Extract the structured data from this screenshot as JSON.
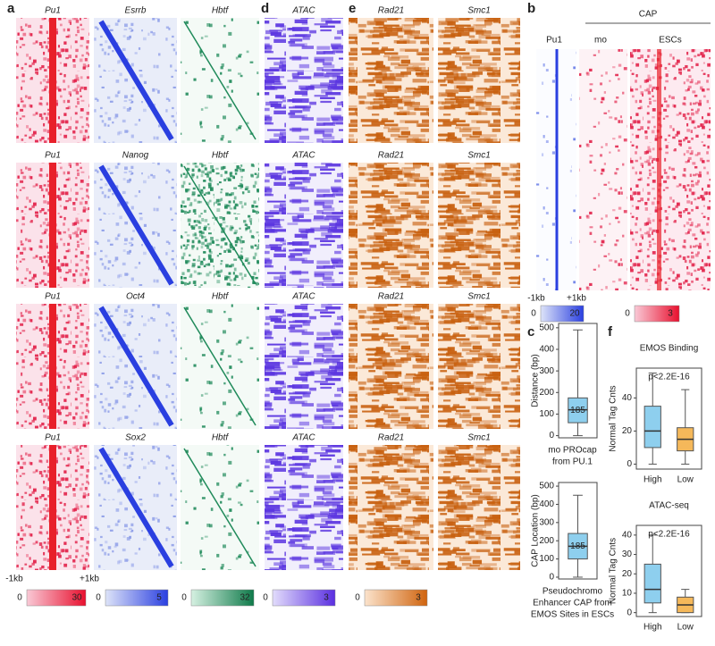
{
  "figure": {
    "panel_labels": [
      "a",
      "b",
      "c",
      "d",
      "e",
      "f"
    ],
    "a_rows": [
      [
        "Pu1",
        "Esrrb",
        "Hbtf"
      ],
      [
        "Pu1",
        "Nanog",
        "Hbtf"
      ],
      [
        "Pu1",
        "Oct4",
        "Hbtf"
      ],
      [
        "Pu1",
        "Sox2",
        "Hbtf"
      ]
    ],
    "d_titles": [
      "ATAC",
      "ATAC",
      "ATAC",
      "ATAC"
    ],
    "e_titles": [
      [
        "Rad21",
        "Smc1"
      ],
      [
        "Rad21",
        "Smc1"
      ],
      [
        "Rad21",
        "Smc1"
      ],
      [
        "Rad21",
        "Smc1"
      ]
    ],
    "a_axis": [
      "-1kb",
      "+1kb"
    ],
    "colorbars": [
      {
        "min": 0,
        "max": 30,
        "colors": [
          "#f9c9d6",
          "#e8102e"
        ]
      },
      {
        "min": 0,
        "max": 5,
        "colors": [
          "#dde3f8",
          "#2a3fe0"
        ]
      },
      {
        "min": 0,
        "max": 32,
        "colors": [
          "#d6f1e2",
          "#0f7a4a"
        ]
      },
      {
        "min": 0,
        "max": 3,
        "colors": [
          "#e2dcfb",
          "#5a2fe0"
        ]
      },
      {
        "min": 0,
        "max": 3,
        "colors": [
          "#fbe3cc",
          "#d0640e"
        ]
      }
    ],
    "b": {
      "title": "Pu1",
      "group": "CAP",
      "columns": [
        "mo",
        "ESCs"
      ],
      "axis": [
        "-1kb",
        "+1kb"
      ],
      "colorbars": [
        {
          "min": 0,
          "max": 20,
          "colors": [
            "#dde3f8",
            "#2a3fe0"
          ]
        },
        {
          "min": 0,
          "max": 3,
          "colors": [
            "#f9c9d6",
            "#e8102e"
          ]
        }
      ]
    }
  },
  "chart_data": [
    {
      "type": "box",
      "ylabel": "Distance (bp)",
      "xlabel": [
        "mo PROcap",
        "from PU.1"
      ],
      "annotation": "185",
      "ylim": [
        -10,
        520
      ],
      "yticks": [
        0,
        100,
        200,
        300,
        400,
        500
      ],
      "series": [
        {
          "color": "#8ecfee",
          "values": [
            0,
            60,
            120,
            175,
            490
          ]
        }
      ]
    },
    {
      "type": "box",
      "ylabel": "CAP Location (bp)",
      "xlabel": [
        "Pseudochromo",
        "Enhancer CAP from",
        "EMOS Sites in ESCs"
      ],
      "annotation": "185",
      "ylim": [
        -10,
        520
      ],
      "yticks": [
        0,
        100,
        200,
        300,
        400,
        500
      ],
      "series": [
        {
          "color": "#8ecfee",
          "values": [
            0,
            100,
            170,
            240,
            450
          ]
        }
      ]
    },
    {
      "type": "box",
      "title": "EMOS Binding",
      "ylabel": "Normal Tag Cnts",
      "annotation": "p<2.2E-16",
      "categories": [
        "High",
        "Low"
      ],
      "ylim": [
        -3,
        58
      ],
      "yticks": [
        0,
        20,
        40
      ],
      "series": [
        {
          "color": "#8ecfee",
          "values": [
            0,
            10,
            20,
            35,
            55
          ]
        },
        {
          "color": "#f5b85a",
          "values": [
            0,
            8,
            15,
            22,
            45
          ]
        }
      ]
    },
    {
      "type": "box",
      "title": "ATAC-seq",
      "ylabel": "Normal Tag Cnts",
      "annotation": "p<2.2E-16",
      "categories": [
        "High",
        "Low"
      ],
      "ylim": [
        -2,
        45
      ],
      "yticks": [
        0,
        10,
        20,
        30,
        40
      ],
      "series": [
        {
          "color": "#8ecfee",
          "values": [
            0,
            5,
            12,
            25,
            40
          ]
        },
        {
          "color": "#f5b85a",
          "values": [
            0,
            0,
            4,
            8,
            12
          ]
        }
      ]
    }
  ]
}
